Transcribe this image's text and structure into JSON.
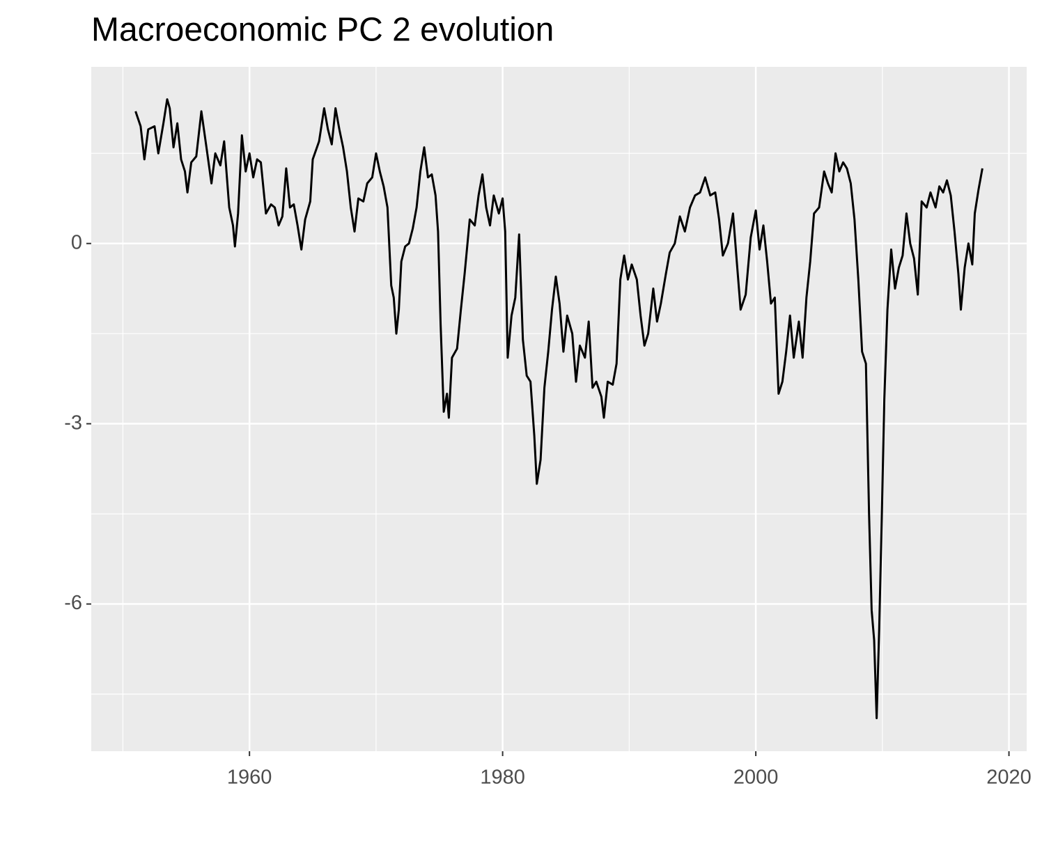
{
  "chart_data": {
    "type": "line",
    "title": "Macroeconomic PC 2 evolution",
    "x": [
      1951.0,
      1951.4,
      1951.7,
      1952.0,
      1952.5,
      1952.8,
      1953.2,
      1953.5,
      1953.7,
      1954.0,
      1954.3,
      1954.6,
      1954.9,
      1955.1,
      1955.4,
      1955.8,
      1956.2,
      1956.6,
      1957.0,
      1957.3,
      1957.7,
      1958.0,
      1958.4,
      1958.7,
      1958.85,
      1959.1,
      1959.4,
      1959.7,
      1960.0,
      1960.3,
      1960.6,
      1960.9,
      1961.3,
      1961.7,
      1962.0,
      1962.3,
      1962.6,
      1962.9,
      1963.2,
      1963.5,
      1963.8,
      1964.1,
      1964.4,
      1964.8,
      1965.0,
      1965.5,
      1965.9,
      1966.2,
      1966.5,
      1966.8,
      1967.1,
      1967.4,
      1967.7,
      1968.0,
      1968.3,
      1968.6,
      1969.0,
      1969.3,
      1969.7,
      1970.0,
      1970.3,
      1970.6,
      1970.9,
      1971.2,
      1971.4,
      1971.6,
      1971.8,
      1972.0,
      1972.3,
      1972.6,
      1972.9,
      1973.2,
      1973.5,
      1973.8,
      1974.1,
      1974.4,
      1974.7,
      1974.9,
      1975.1,
      1975.35,
      1975.6,
      1975.75,
      1976.0,
      1976.4,
      1976.7,
      1977.0,
      1977.4,
      1977.8,
      1978.1,
      1978.4,
      1978.7,
      1979.0,
      1979.3,
      1979.7,
      1980.0,
      1980.2,
      1980.4,
      1980.7,
      1981.0,
      1981.3,
      1981.6,
      1981.9,
      1982.2,
      1982.5,
      1982.7,
      1983.0,
      1983.3,
      1983.6,
      1983.9,
      1984.2,
      1984.5,
      1984.8,
      1985.1,
      1985.5,
      1985.8,
      1986.1,
      1986.5,
      1986.8,
      1987.1,
      1987.4,
      1987.8,
      1988.0,
      1988.3,
      1988.7,
      1989.0,
      1989.3,
      1989.6,
      1989.9,
      1990.2,
      1990.6,
      1990.9,
      1991.2,
      1991.5,
      1991.9,
      1992.2,
      1992.5,
      1992.9,
      1993.2,
      1993.6,
      1994.0,
      1994.4,
      1994.8,
      1995.2,
      1995.6,
      1996.0,
      1996.4,
      1996.8,
      1997.1,
      1997.4,
      1997.8,
      1998.2,
      1998.5,
      1998.8,
      1999.2,
      1999.6,
      2000.0,
      2000.3,
      2000.6,
      2000.9,
      2001.2,
      2001.5,
      2001.8,
      2002.1,
      2002.4,
      2002.7,
      2003.0,
      2003.4,
      2003.7,
      2004.0,
      2004.3,
      2004.6,
      2005.0,
      2005.4,
      2005.7,
      2006.0,
      2006.3,
      2006.6,
      2006.9,
      2007.2,
      2007.5,
      2007.8,
      2008.1,
      2008.4,
      2008.7,
      2008.95,
      2009.15,
      2009.35,
      2009.55,
      2009.75,
      2009.95,
      2010.15,
      2010.4,
      2010.7,
      2011.0,
      2011.3,
      2011.6,
      2011.9,
      2012.2,
      2012.5,
      2012.8,
      2013.1,
      2013.5,
      2013.8,
      2014.2,
      2014.5,
      2014.8,
      2015.1,
      2015.4,
      2015.7,
      2016.0,
      2016.2,
      2016.5,
      2016.8,
      2017.1,
      2017.3,
      2017.6,
      2017.9
    ],
    "values": [
      2.2,
      1.95,
      1.4,
      1.9,
      1.95,
      1.5,
      2.0,
      2.4,
      2.25,
      1.6,
      2.0,
      1.4,
      1.2,
      0.85,
      1.35,
      1.45,
      2.2,
      1.6,
      1.0,
      1.5,
      1.3,
      1.7,
      0.6,
      0.3,
      -0.05,
      0.5,
      1.8,
      1.2,
      1.5,
      1.1,
      1.4,
      1.35,
      0.5,
      0.65,
      0.6,
      0.3,
      0.45,
      1.25,
      0.6,
      0.65,
      0.3,
      -0.1,
      0.4,
      0.7,
      1.4,
      1.7,
      2.25,
      1.9,
      1.65,
      2.25,
      1.9,
      1.6,
      1.2,
      0.6,
      0.2,
      0.75,
      0.7,
      1.0,
      1.1,
      1.5,
      1.2,
      0.95,
      0.6,
      -0.7,
      -0.9,
      -1.5,
      -1.1,
      -0.3,
      -0.05,
      0.0,
      0.25,
      0.6,
      1.2,
      1.6,
      1.1,
      1.15,
      0.8,
      0.2,
      -1.35,
      -2.8,
      -2.5,
      -2.9,
      -1.9,
      -1.75,
      -1.1,
      -0.5,
      0.4,
      0.3,
      0.8,
      1.15,
      0.6,
      0.3,
      0.8,
      0.5,
      0.75,
      0.2,
      -1.9,
      -1.2,
      -0.9,
      0.15,
      -1.6,
      -2.2,
      -2.3,
      -3.2,
      -4.0,
      -3.6,
      -2.4,
      -1.8,
      -1.1,
      -0.55,
      -1.0,
      -1.8,
      -1.2,
      -1.5,
      -2.3,
      -1.7,
      -1.9,
      -1.3,
      -2.4,
      -2.3,
      -2.55,
      -2.9,
      -2.3,
      -2.35,
      -2.0,
      -0.6,
      -0.2,
      -0.6,
      -0.35,
      -0.6,
      -1.2,
      -1.7,
      -1.5,
      -0.75,
      -1.3,
      -1.0,
      -0.5,
      -0.15,
      0.0,
      0.45,
      0.2,
      0.6,
      0.8,
      0.85,
      1.1,
      0.8,
      0.85,
      0.4,
      -0.2,
      0.0,
      0.5,
      -0.3,
      -1.1,
      -0.85,
      0.1,
      0.55,
      -0.1,
      0.3,
      -0.3,
      -1.0,
      -0.9,
      -2.5,
      -2.3,
      -1.8,
      -1.2,
      -1.9,
      -1.3,
      -1.9,
      -0.9,
      -0.3,
      0.5,
      0.6,
      1.2,
      1.0,
      0.85,
      1.5,
      1.2,
      1.35,
      1.25,
      1.0,
      0.4,
      -0.6,
      -1.8,
      -2.0,
      -4.5,
      -6.1,
      -6.6,
      -7.9,
      -6.4,
      -4.6,
      -2.6,
      -1.1,
      -0.1,
      -0.75,
      -0.4,
      -0.2,
      0.5,
      0.0,
      -0.25,
      -0.85,
      0.7,
      0.6,
      0.85,
      0.6,
      0.95,
      0.85,
      1.05,
      0.8,
      0.2,
      -0.5,
      -1.1,
      -0.4,
      0.0,
      -0.35,
      0.5,
      0.9,
      1.25
    ],
    "color": "#000000",
    "xlim": [
      1947.5,
      2021.4
    ],
    "xticks": [
      1960,
      1980,
      2000,
      2020
    ],
    "xminor": [
      1950,
      1970,
      1990,
      2010
    ],
    "ylim": [
      -8.45,
      2.94
    ],
    "yticks": [
      -6,
      -3,
      0
    ],
    "yminor": [
      -7.5,
      -4.5,
      -1.5,
      1.5
    ],
    "grid": true
  }
}
